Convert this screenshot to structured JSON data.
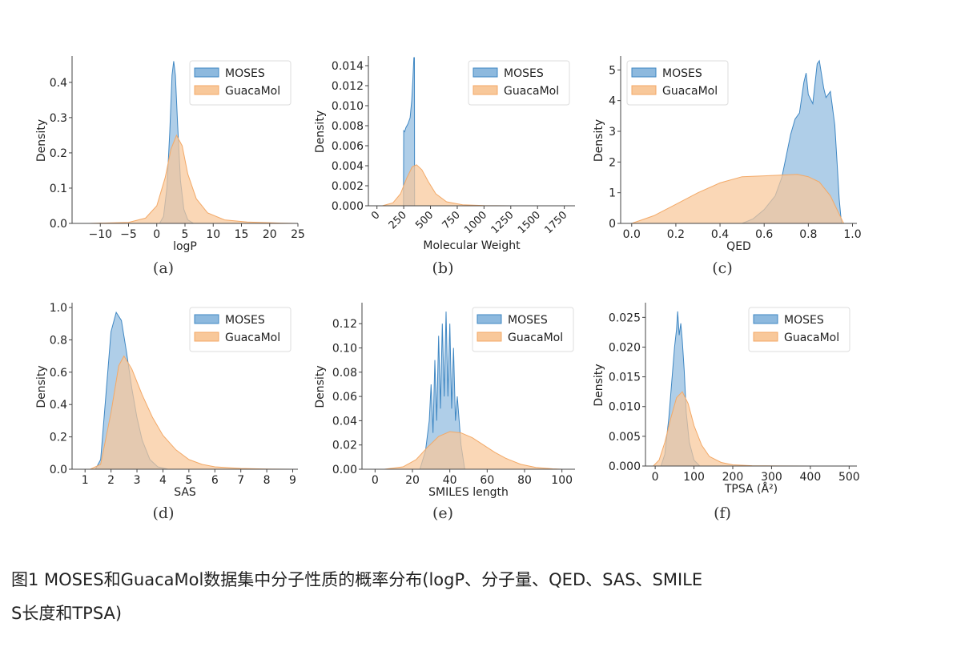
{
  "legend": {
    "moses": "MOSES",
    "guacamol": "GuacaMol"
  },
  "colors": {
    "moses_fill": "#8db9de",
    "moses_line": "#3f87c3",
    "guaca_fill": "#f8c89a",
    "guaca_line": "#f3a967"
  },
  "ylabel": "Density",
  "caption": {
    "line1": "图1  MOSES和GuacaMol数据集中分子性质的概率分布(logP、分子量、QED、SAS、SMILE",
    "line2": "S长度和TPSA)"
  },
  "chart_data": [
    {
      "type": "area",
      "sublabel": "(a)",
      "xlabel": "logP",
      "ylabel": "Density",
      "xlim": [
        -15,
        25
      ],
      "ylim": [
        0,
        0.47
      ],
      "xticks": [
        -10,
        -5,
        0,
        5,
        10,
        15,
        20,
        25
      ],
      "xtick_labels": [
        "−10",
        "−5",
        "0",
        "5",
        "10",
        "15",
        "20",
        "25"
      ],
      "yticks": [
        0,
        0.1,
        0.2,
        0.3,
        0.4
      ],
      "ytick_labels": [
        "0.0",
        "0.1",
        "0.2",
        "0.3",
        "0.4"
      ],
      "legend_position": "top-right",
      "series": [
        {
          "name": "MOSES",
          "x": [
            0.5,
            1.2,
            1.8,
            2.3,
            2.7,
            3.0,
            3.3,
            3.7,
            4.2,
            4.8,
            5.5,
            6.5
          ],
          "y": [
            0.0,
            0.02,
            0.1,
            0.26,
            0.42,
            0.46,
            0.42,
            0.28,
            0.12,
            0.04,
            0.01,
            0.0
          ]
        },
        {
          "name": "GuacaMol",
          "x": [
            -12,
            -5,
            -2,
            0,
            1.5,
            2.5,
            3.5,
            4.5,
            5.5,
            7,
            9,
            12,
            16,
            22,
            25
          ],
          "y": [
            0.0,
            0.003,
            0.015,
            0.05,
            0.13,
            0.21,
            0.25,
            0.22,
            0.14,
            0.07,
            0.03,
            0.01,
            0.004,
            0.001,
            0.0
          ]
        }
      ]
    },
    {
      "type": "area",
      "sublabel": "(b)",
      "xlabel": "Molecular Weight",
      "ylabel": "Density",
      "xlim": [
        -80,
        1850
      ],
      "ylim": [
        0,
        0.0148
      ],
      "xticks": [
        0,
        250,
        500,
        750,
        1000,
        1250,
        1500,
        1750
      ],
      "xtick_labels": [
        "0",
        "250",
        "500",
        "750",
        "1000",
        "1250",
        "1500",
        "1750"
      ],
      "xtick_rotation": 45,
      "yticks": [
        0,
        0.002,
        0.004,
        0.006,
        0.008,
        0.01,
        0.012,
        0.014
      ],
      "ytick_labels": [
        "0.000",
        "0.002",
        "0.004",
        "0.006",
        "0.008",
        "0.010",
        "0.012",
        "0.014"
      ],
      "legend_position": "top-right",
      "series": [
        {
          "name": "MOSES",
          "x": [
            248,
            250,
            258,
            270,
            290,
            310,
            325,
            335,
            345,
            350,
            352
          ],
          "y": [
            0.0,
            0.0075,
            0.0074,
            0.0078,
            0.0082,
            0.0088,
            0.0105,
            0.0125,
            0.0148,
            0.0148,
            0.0
          ]
        },
        {
          "name": "GuacaMol",
          "x": [
            50,
            150,
            220,
            280,
            330,
            370,
            420,
            480,
            550,
            650,
            800,
            1000,
            1300
          ],
          "y": [
            0.0,
            0.0003,
            0.0012,
            0.0028,
            0.0039,
            0.0041,
            0.0036,
            0.0024,
            0.0012,
            0.0004,
            0.0001,
            2e-05,
            0.0
          ]
        }
      ]
    },
    {
      "type": "area",
      "sublabel": "(c)",
      "xlabel": "QED",
      "ylabel": "Density",
      "xlim": [
        -0.05,
        1.02
      ],
      "ylim": [
        0,
        5.4
      ],
      "xticks": [
        0.0,
        0.2,
        0.4,
        0.6,
        0.8,
        1.0
      ],
      "xtick_labels": [
        "0.0",
        "0.2",
        "0.4",
        "0.6",
        "0.8",
        "1.0"
      ],
      "yticks": [
        0,
        1,
        2,
        3,
        4,
        5
      ],
      "ytick_labels": [
        "0",
        "1",
        "2",
        "3",
        "4",
        "5"
      ],
      "legend_position": "top-left",
      "series": [
        {
          "name": "MOSES",
          "x": [
            0.5,
            0.55,
            0.6,
            0.65,
            0.68,
            0.7,
            0.72,
            0.74,
            0.76,
            0.78,
            0.79,
            0.8,
            0.82,
            0.84,
            0.85,
            0.87,
            0.88,
            0.9,
            0.92,
            0.93,
            0.94,
            0.95
          ],
          "y": [
            0.0,
            0.15,
            0.45,
            0.9,
            1.5,
            2.2,
            2.9,
            3.4,
            3.6,
            4.6,
            4.9,
            4.2,
            3.9,
            5.2,
            5.3,
            4.4,
            4.1,
            4.3,
            3.2,
            2.0,
            0.8,
            0.0
          ]
        },
        {
          "name": "GuacaMol",
          "x": [
            0.0,
            0.1,
            0.2,
            0.3,
            0.4,
            0.5,
            0.6,
            0.7,
            0.75,
            0.8,
            0.85,
            0.9,
            0.93,
            0.96
          ],
          "y": [
            0.0,
            0.25,
            0.62,
            1.0,
            1.32,
            1.52,
            1.55,
            1.58,
            1.6,
            1.52,
            1.35,
            0.9,
            0.45,
            0.0
          ]
        }
      ]
    },
    {
      "type": "area",
      "sublabel": "(d)",
      "xlabel": "SAS",
      "ylabel": "Density",
      "xlim": [
        0.5,
        9.2
      ],
      "ylim": [
        0,
        1.02
      ],
      "xticks": [
        1,
        2,
        3,
        4,
        5,
        6,
        7,
        8,
        9
      ],
      "xtick_labels": [
        "1",
        "2",
        "3",
        "4",
        "5",
        "6",
        "7",
        "8",
        "9"
      ],
      "yticks": [
        0,
        0.2,
        0.4,
        0.6,
        0.8,
        1.0
      ],
      "ytick_labels": [
        "0.0",
        "0.2",
        "0.4",
        "0.6",
        "0.8",
        "1.0"
      ],
      "legend_position": "top-right",
      "series": [
        {
          "name": "MOSES",
          "x": [
            1.4,
            1.6,
            1.8,
            2.0,
            2.2,
            2.4,
            2.6,
            2.8,
            3.0,
            3.2,
            3.5,
            3.8,
            4.2
          ],
          "y": [
            0.0,
            0.06,
            0.45,
            0.85,
            0.97,
            0.92,
            0.72,
            0.5,
            0.32,
            0.18,
            0.06,
            0.015,
            0.0
          ]
        },
        {
          "name": "GuacaMol",
          "x": [
            1.2,
            1.6,
            2.0,
            2.3,
            2.5,
            2.8,
            3.2,
            3.6,
            4.0,
            4.5,
            5.0,
            5.5,
            6.0,
            7.0,
            8.0,
            9.0
          ],
          "y": [
            0.0,
            0.03,
            0.35,
            0.64,
            0.7,
            0.62,
            0.46,
            0.32,
            0.21,
            0.12,
            0.06,
            0.03,
            0.015,
            0.005,
            0.001,
            0.0
          ]
        }
      ]
    },
    {
      "type": "area",
      "sublabel": "(e)",
      "xlabel": "SMILES length",
      "ylabel": "Density",
      "xlim": [
        -7,
        107
      ],
      "ylim": [
        0,
        0.136
      ],
      "xticks": [
        0,
        20,
        40,
        60,
        80,
        100
      ],
      "xtick_labels": [
        "0",
        "20",
        "40",
        "60",
        "80",
        "100"
      ],
      "yticks": [
        0,
        0.02,
        0.04,
        0.06,
        0.08,
        0.1,
        0.12
      ],
      "ytick_labels": [
        "0.00",
        "0.02",
        "0.04",
        "0.06",
        "0.08",
        "0.10",
        "0.12"
      ],
      "legend_position": "top-right",
      "series": [
        {
          "name": "MOSES",
          "x": [
            24,
            27,
            29,
            30,
            31,
            32,
            33,
            34,
            35,
            36,
            37,
            38,
            39,
            40,
            41,
            42,
            43,
            44,
            46,
            48
          ],
          "y": [
            0.0,
            0.015,
            0.04,
            0.07,
            0.03,
            0.09,
            0.04,
            0.11,
            0.05,
            0.12,
            0.06,
            0.13,
            0.06,
            0.12,
            0.05,
            0.1,
            0.04,
            0.06,
            0.02,
            0.0
          ]
        },
        {
          "name": "GuacaMol",
          "x": [
            5,
            15,
            22,
            28,
            34,
            40,
            46,
            52,
            58,
            64,
            70,
            78,
            86,
            95,
            100
          ],
          "y": [
            0.0,
            0.002,
            0.008,
            0.018,
            0.027,
            0.031,
            0.03,
            0.026,
            0.02,
            0.014,
            0.009,
            0.004,
            0.0015,
            0.0003,
            0.0
          ]
        }
      ]
    },
    {
      "type": "area",
      "sublabel": "(f)",
      "xlabel": "TPSA (Å²)",
      "ylabel": "Density",
      "xlim": [
        -25,
        520
      ],
      "ylim": [
        0,
        0.0272
      ],
      "xticks": [
        0,
        100,
        200,
        300,
        400,
        500
      ],
      "xtick_labels": [
        "0",
        "100",
        "200",
        "300",
        "400",
        "500"
      ],
      "yticks": [
        0,
        0.005,
        0.01,
        0.015,
        0.02,
        0.025
      ],
      "ytick_labels": [
        "0.000",
        "0.005",
        "0.010",
        "0.015",
        "0.020",
        "0.025"
      ],
      "legend_position": "top-right",
      "series": [
        {
          "name": "MOSES",
          "x": [
            15,
            25,
            35,
            45,
            50,
            55,
            58,
            62,
            66,
            70,
            75,
            80,
            88,
            100,
            115
          ],
          "y": [
            0.0,
            0.002,
            0.008,
            0.016,
            0.02,
            0.023,
            0.026,
            0.022,
            0.024,
            0.021,
            0.016,
            0.009,
            0.004,
            0.001,
            0.0
          ]
        },
        {
          "name": "GuacaMol",
          "x": [
            -5,
            10,
            25,
            40,
            55,
            70,
            85,
            100,
            120,
            140,
            170,
            200,
            250,
            320,
            400
          ],
          "y": [
            0.0,
            0.001,
            0.004,
            0.008,
            0.0115,
            0.0125,
            0.0105,
            0.0068,
            0.0035,
            0.0016,
            0.0006,
            0.0002,
            5e-05,
            1e-05,
            0.0
          ]
        }
      ]
    }
  ]
}
